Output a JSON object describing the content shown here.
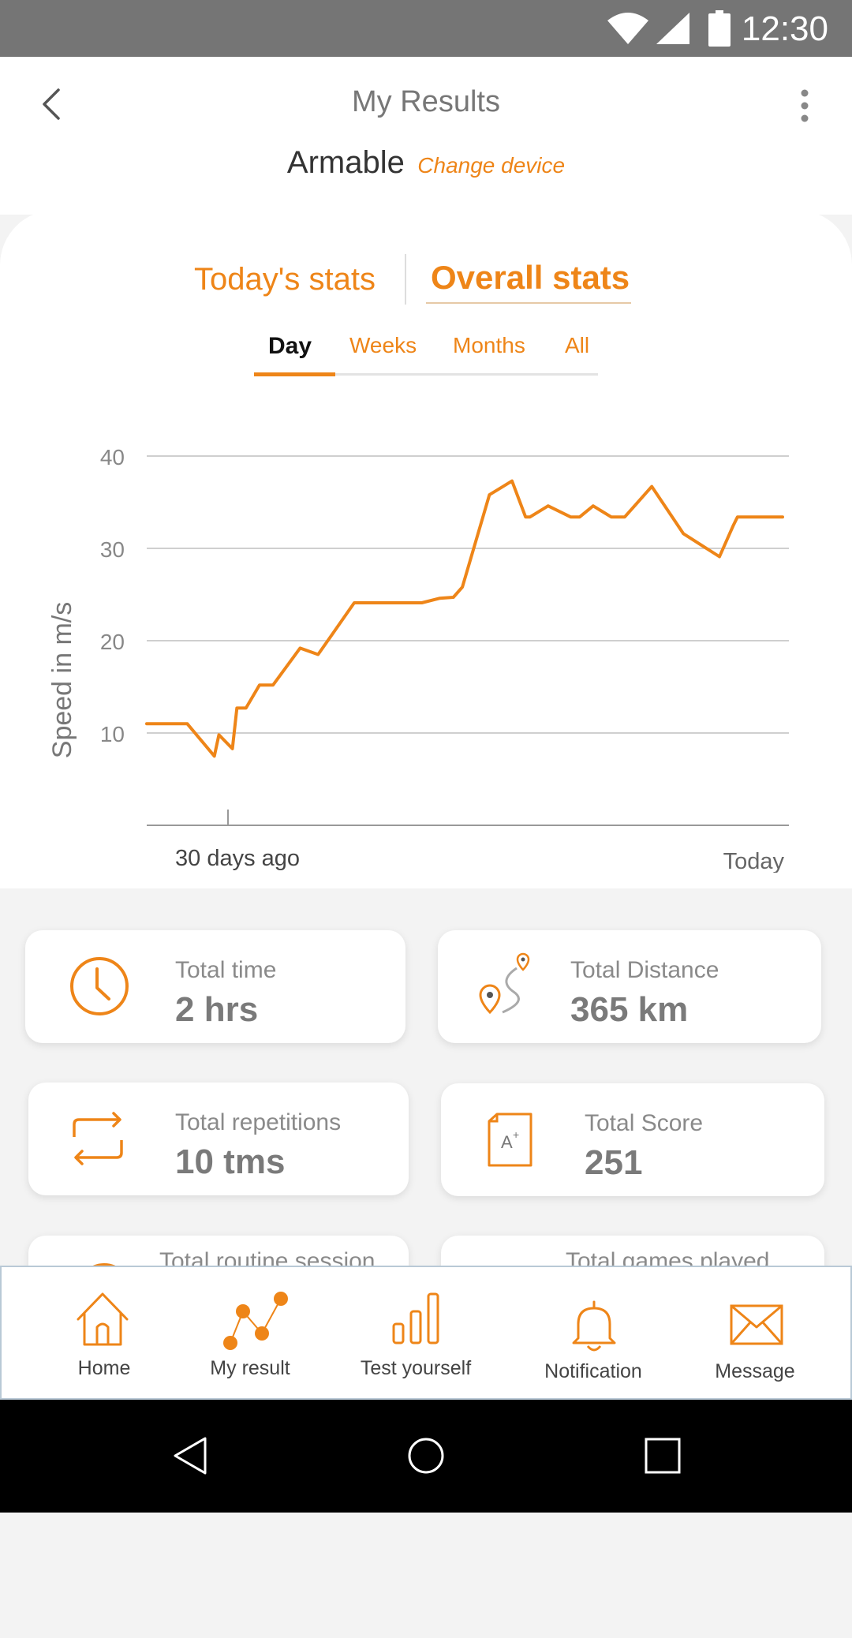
{
  "status_bar": {
    "time": "12:30",
    "icons": [
      "wifi-icon",
      "signal-icon",
      "battery-icon"
    ]
  },
  "header": {
    "title": "My Results",
    "device_name": "Armable",
    "change_device": "Change device"
  },
  "stats_tabs": {
    "today": "Today's stats",
    "overall": "Overall stats",
    "active": "overall"
  },
  "period_tabs": {
    "items": [
      "Day",
      "Weeks",
      "Months",
      "All"
    ],
    "active": "Day"
  },
  "chart_data": {
    "type": "line",
    "ylabel": "Speed in m/s",
    "xlabel": "",
    "x_tick_labels": [
      "30 days ago",
      "Today"
    ],
    "y_ticks": [
      10,
      20,
      30,
      40
    ],
    "ylim": [
      0,
      40
    ],
    "grid": true,
    "color": "#ee8518",
    "series": [
      {
        "x": [
          0,
          0.3,
          0.9,
          1.5,
          1.6,
          1.9,
          2,
          2.2,
          2.5,
          2.8,
          3.4,
          3.8,
          4.1,
          4.6,
          5.3,
          5.9,
          6.1,
          6.5,
          6.8,
          7.0,
          7.6,
          8.1,
          8.4,
          8.5,
          8.9,
          9.4,
          9.6,
          9.9,
          10.3,
          10.6,
          11.2,
          11.9,
          12.7,
          13.0,
          13.1,
          13.5,
          14.1
        ],
        "y": [
          11,
          11,
          11,
          7.5,
          9.8,
          8.3,
          12.7,
          12.7,
          15.2,
          15.2,
          19.2,
          18.5,
          20.6,
          24.1,
          24.1,
          24.1,
          24.1,
          24.6,
          24.7,
          25.8,
          35.8,
          37.3,
          33.4,
          33.4,
          34.6,
          33.4,
          33.4,
          34.6,
          33.4,
          33.4,
          36.7,
          31.6,
          29.1,
          32.4,
          33.4,
          33.4,
          33.4
        ]
      }
    ]
  },
  "stats": [
    {
      "label": "Total time",
      "value": "2 hrs",
      "icon": "clock-icon"
    },
    {
      "label": "Total Distance",
      "value": "365 km",
      "icon": "route-icon"
    },
    {
      "label": "Total repetitions",
      "value": "10 tms",
      "icon": "repeat-icon"
    },
    {
      "label": "Total Score",
      "value": "251",
      "icon": "score-icon"
    },
    {
      "label": "Total routine session",
      "value": "",
      "icon": "routine-icon"
    },
    {
      "label": "Total games played",
      "value": "",
      "icon": "games-icon"
    }
  ],
  "bottom_nav": {
    "items": [
      {
        "label": "Home",
        "icon": "home-icon"
      },
      {
        "label": "My result",
        "icon": "result-icon"
      },
      {
        "label": "Test yourself",
        "icon": "bar-chart-icon"
      },
      {
        "label": "Notification",
        "icon": "bell-icon"
      },
      {
        "label": "Message",
        "icon": "envelope-icon"
      }
    ]
  },
  "colors": {
    "accent": "#ee8518",
    "status_bar": "#757575",
    "android_nav": "#000000"
  }
}
